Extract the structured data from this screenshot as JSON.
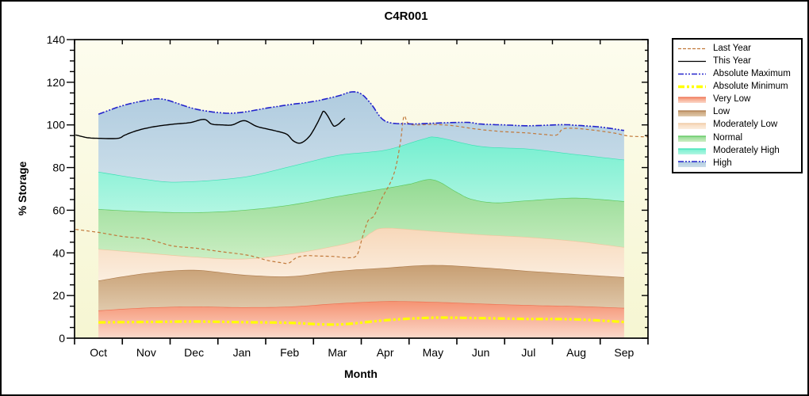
{
  "chart_data": {
    "type": "area",
    "title": "C4R001",
    "xlabel": "Month",
    "ylabel": "% Storage",
    "ylim": [
      0,
      140
    ],
    "y_major_step": 20,
    "y_minor_step": 5,
    "grid": false,
    "legend_position": "right-outside",
    "x_unit": "month index, 0 = start of Oct, 12 = end of Sep; data points at month midpoints",
    "months": [
      "Oct",
      "Nov",
      "Dec",
      "Jan",
      "Feb",
      "Mar",
      "Apr",
      "May",
      "Jun",
      "Jul",
      "Aug",
      "Sep"
    ],
    "plot_bg_top": "#FDFCEE",
    "plot_bg_bottom": "#F6F6D2",
    "bands": [
      {
        "name": "Very Low",
        "x": [
          0.5,
          1.5,
          2.5,
          3.5,
          4.5,
          5.5,
          6.5,
          7.5,
          8.5,
          9.5,
          10.5,
          11.5
        ],
        "top": [
          13,
          14.3,
          14.8,
          14.5,
          14.8,
          16.3,
          17.3,
          17,
          16.2,
          15.5,
          15,
          14.2
        ],
        "bottom": "zero",
        "fill_top": "#F59272",
        "fill_bottom": "#FBD9CA",
        "edge": "#EE6F50"
      },
      {
        "name": "Low",
        "x": [
          0.5,
          1.5,
          2.5,
          3.5,
          4.5,
          5.5,
          6.5,
          7.5,
          8.5,
          9.5,
          10.5,
          11.5
        ],
        "top": [
          27,
          30.5,
          32,
          29.8,
          29,
          31.5,
          33,
          34.3,
          33.2,
          31.5,
          30,
          28.6
        ],
        "bottom": "prev",
        "fill_top": "#C79E72",
        "fill_bottom": "#E0C9AB",
        "edge": "#AE7C4D"
      },
      {
        "name": "Moderately Low",
        "x": [
          0.5,
          1.5,
          2.5,
          3.5,
          4.5,
          5.5,
          6.0,
          6.2,
          6.5,
          7.5,
          8.5,
          9.5,
          10.5,
          11.5
        ],
        "top": [
          41.8,
          40,
          38.2,
          37.2,
          39.5,
          43.5,
          46.5,
          49.5,
          51.7,
          50.2,
          48.6,
          47.4,
          45.5,
          42.7
        ],
        "bottom": "prev",
        "fill_top": "#F7D8BA",
        "fill_bottom": "#FBEEDF",
        "edge": "#EDC79E"
      },
      {
        "name": "Normal",
        "x": [
          0.5,
          1.5,
          2.5,
          3.5,
          4.5,
          5.5,
          6.5,
          7.0,
          7.5,
          8.0,
          8.3,
          8.8,
          9.5,
          10.5,
          11.5
        ],
        "top": [
          60.5,
          59.4,
          59,
          60,
          62.5,
          66.5,
          70.3,
          72.3,
          74.4,
          68.5,
          65.3,
          63.6,
          64.6,
          65.8,
          64.2
        ],
        "bottom": "prev",
        "fill_top": "#92DA92",
        "fill_bottom": "#CBEEC3",
        "edge": "#5BC75B"
      },
      {
        "name": "Moderately High",
        "x": [
          0.5,
          1.5,
          2.2,
          3.5,
          4.5,
          5.5,
          6.5,
          7.3,
          7.6,
          8.5,
          9.5,
          10.5,
          11.5
        ],
        "top": [
          78,
          74.5,
          73.3,
          75.5,
          80.5,
          85.8,
          88.3,
          93.5,
          94.2,
          90,
          88.8,
          86.2,
          83.7
        ],
        "bottom": "prev",
        "fill_top": "#74EFD0",
        "fill_bottom": "#B2F6E2",
        "edge": "#3BE0B4"
      },
      {
        "name": "High",
        "x": [
          0.5,
          1.0,
          1.5,
          1.87,
          2.5,
          3.1,
          3.5,
          4.0,
          4.5,
          5.0,
          5.5,
          5.8,
          6.0,
          6.2,
          6.5,
          7.0,
          7.5,
          8.2,
          8.5,
          9.0,
          9.5,
          10.2,
          10.5,
          11.0,
          11.5
        ],
        "top": [
          105,
          109,
          111.5,
          112,
          107.6,
          105.6,
          105.9,
          107.8,
          109.5,
          111,
          113.5,
          115.5,
          114.5,
          110,
          101.8,
          100.5,
          100.8,
          101.2,
          100.4,
          100,
          99.6,
          100.1,
          99.8,
          99,
          97.4
        ],
        "bottom": "prev",
        "fill_top": "#AFCBDF",
        "fill_bottom": "#CBDEE9",
        "edge": "none"
      }
    ],
    "series": [
      {
        "name": "Last Year",
        "style": "dashed",
        "color": "#C1793B",
        "width": 1.2,
        "x": [
          0.02,
          0.5,
          1.0,
          1.51,
          2.04,
          2.54,
          3.02,
          3.52,
          3.78,
          4.03,
          4.32,
          4.48,
          4.65,
          4.86,
          5.11,
          5.44,
          5.73,
          5.91,
          6.02,
          6.14,
          6.27,
          6.44,
          6.61,
          6.72,
          6.82,
          6.89,
          6.97,
          7.1,
          7.52,
          7.93,
          8.43,
          8.93,
          9.43,
          9.84,
          10.09,
          10.22,
          10.46,
          10.76,
          11.05,
          11.34,
          11.59,
          12.0
        ],
        "y": [
          51,
          49.6,
          47.7,
          46.5,
          43.3,
          42.2,
          40.7,
          39.3,
          38.1,
          36.5,
          35.4,
          35.2,
          37.8,
          38.7,
          38.5,
          38.3,
          37.7,
          39,
          47,
          55,
          57.5,
          66,
          73,
          80,
          92,
          103.9,
          101,
          100,
          100.2,
          99.6,
          98,
          96.9,
          96.3,
          95.5,
          95.3,
          98.1,
          98.4,
          97.8,
          97,
          96,
          94.8,
          94.4
        ]
      },
      {
        "name": "This Year",
        "style": "solid",
        "color": "#000000",
        "width": 1.4,
        "x": [
          0.02,
          0.15,
          0.27,
          0.5,
          0.9,
          1.05,
          1.26,
          1.51,
          1.76,
          2.09,
          2.42,
          2.71,
          2.87,
          3.09,
          3.3,
          3.55,
          3.8,
          4.03,
          4.28,
          4.45,
          4.58,
          4.73,
          4.91,
          5.06,
          5.16,
          5.21,
          5.29,
          5.39,
          5.44,
          5.53,
          5.61,
          5.66
        ],
        "y": [
          95.3,
          94.6,
          94,
          93.7,
          93.7,
          95.2,
          97,
          98.5,
          99.5,
          100.4,
          101.1,
          102.6,
          100.4,
          100,
          100,
          102,
          99.4,
          98.1,
          96.8,
          95.5,
          92.5,
          91.5,
          94.5,
          100,
          104.5,
          106.4,
          104.5,
          100.5,
          99.4,
          100.5,
          102.2,
          103.1
        ]
      },
      {
        "name": "Absolute Maximum",
        "style": "dash-dot-dot",
        "color": "#2323CC",
        "width": 1.6,
        "x": [
          0.5,
          1.0,
          1.5,
          1.87,
          2.5,
          3.1,
          3.5,
          4.0,
          4.5,
          5.0,
          5.5,
          5.8,
          6.0,
          6.2,
          6.5,
          7.0,
          7.5,
          8.2,
          8.5,
          9.0,
          9.5,
          10.2,
          10.5,
          11.0,
          11.5
        ],
        "y": [
          105,
          109,
          111.5,
          112,
          107.6,
          105.6,
          105.9,
          107.8,
          109.5,
          111,
          113.5,
          115.5,
          114.5,
          110,
          101.8,
          100.5,
          100.8,
          101.2,
          100.4,
          100,
          99.6,
          100.1,
          99.8,
          99,
          97.4
        ]
      },
      {
        "name": "Absolute Minimum",
        "style": "dash-dot-dot-thick",
        "color": "#FFFF00",
        "width": 3.2,
        "x": [
          0.5,
          1.5,
          2.5,
          3.5,
          4.5,
          5.5,
          6.5,
          7.5,
          8.5,
          9.5,
          10.5,
          11.5
        ],
        "y": [
          7.4,
          7.6,
          7.8,
          7.5,
          7.2,
          6.4,
          8.4,
          9.6,
          9.4,
          9.0,
          8.8,
          7.6
        ]
      }
    ]
  },
  "legend": {
    "items": [
      {
        "label": "Last Year",
        "swatch": "line-dash",
        "color": "#C1793B"
      },
      {
        "label": "This Year",
        "swatch": "line-solid",
        "color": "#000000"
      },
      {
        "label": "Absolute Maximum",
        "swatch": "line-dashdotdot",
        "color": "#2323CC"
      },
      {
        "label": "Absolute Minimum",
        "swatch": "line-dashdotdot-thick",
        "color": "#FFFF00"
      },
      {
        "label": "Very Low",
        "swatch": "band",
        "fill_top": "#F59272",
        "fill_bottom": "#FBD9CA",
        "edge": "#EE6F50"
      },
      {
        "label": "Low",
        "swatch": "band",
        "fill_top": "#C79E72",
        "fill_bottom": "#E0C9AB",
        "edge": "#AE7C4D"
      },
      {
        "label": "Moderately Low",
        "swatch": "band",
        "fill_top": "#F7D8BA",
        "fill_bottom": "#FBEEDF",
        "edge": "#EDC79E"
      },
      {
        "label": "Normal",
        "swatch": "band",
        "fill_top": "#92DA92",
        "fill_bottom": "#CBEEC3",
        "edge": "#5BC75B"
      },
      {
        "label": "Moderately High",
        "swatch": "band",
        "fill_top": "#74EFD0",
        "fill_bottom": "#B2F6E2",
        "edge": "#3BE0B4"
      },
      {
        "label": "High",
        "swatch": "band-dashline",
        "fill_top": "#AFCBDF",
        "fill_bottom": "#CBDEE9",
        "edge": "#2323CC"
      }
    ]
  }
}
